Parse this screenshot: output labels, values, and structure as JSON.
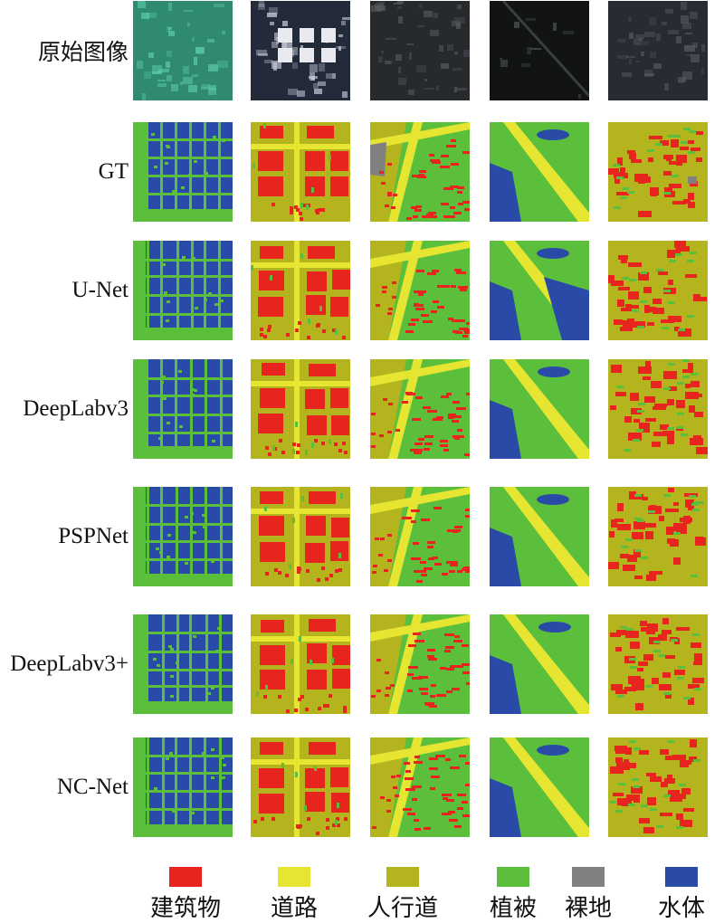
{
  "rows": [
    {
      "label": "原始图像",
      "type": "image"
    },
    {
      "label": "GT",
      "type": "seg"
    },
    {
      "label": "U-Net",
      "type": "seg"
    },
    {
      "label": "DeepLabv3",
      "type": "seg"
    },
    {
      "label": "PSPNet",
      "type": "seg"
    },
    {
      "label": "DeepLabv3+",
      "type": "seg"
    },
    {
      "label": "NC-Net",
      "type": "seg"
    }
  ],
  "legend": [
    {
      "label": "建筑物",
      "color": "#e8241f"
    },
    {
      "label": "道路",
      "color": "#e6e632"
    },
    {
      "label": "人行道",
      "color": "#b4b41e"
    },
    {
      "label": "植被",
      "color": "#5cbf3c"
    },
    {
      "label": "裸地",
      "color": "#808080"
    },
    {
      "label": "水体",
      "color": "#2a4aa8"
    }
  ],
  "photo_colors": [
    "#2f8a70",
    "#232a3a",
    "#262a2c",
    "#111413",
    "#282b33"
  ]
}
